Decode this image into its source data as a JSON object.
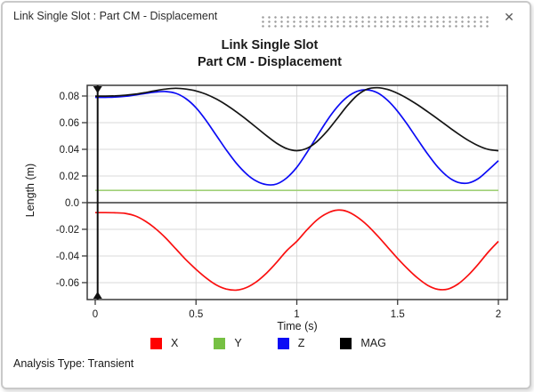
{
  "window": {
    "title": "Link Single Slot : Part CM - Displacement",
    "close_label": "✕"
  },
  "chart": {
    "title_line1": "Link Single Slot",
    "title_line2": "Part CM - Displacement",
    "xlabel": "Time (s)",
    "ylabel": "Length (m)",
    "footer": "Analysis Type: Transient"
  },
  "colors": {
    "grid": "#d9d9d9",
    "frame": "#3a3a3a",
    "zero_line": "#3a3a3a",
    "cursor": "#111111"
  },
  "chart_data": {
    "type": "line",
    "title": "Link Single Slot / Part CM - Displacement",
    "xlabel": "Time (s)",
    "ylabel": "Length (m)",
    "xlim": [
      -0.0397,
      2.0442
    ],
    "ylim": [
      -0.0727,
      0.088
    ],
    "grid": true,
    "legend_position": "bottom",
    "cursor_time": 0.012,
    "xticks": {
      "values": [
        0,
        0.5,
        1,
        1.5,
        2
      ],
      "labels": [
        "0",
        "0.5",
        "1",
        "1.5",
        "2"
      ]
    },
    "yticks": {
      "values": [
        0.08,
        0.06,
        0.04,
        0.02,
        0.0,
        -0.02,
        -0.04,
        -0.06
      ],
      "labels": [
        "0.08",
        "0.06",
        "0.04",
        "0.02",
        "0.0",
        "-0.02",
        "-0.04",
        "-0.06"
      ]
    },
    "x": [
      0,
      0.05,
      0.1,
      0.15,
      0.2,
      0.25,
      0.3,
      0.35,
      0.4,
      0.45,
      0.5,
      0.55,
      0.6,
      0.65,
      0.7,
      0.75,
      0.8,
      0.85,
      0.9,
      0.95,
      1,
      1.05,
      1.1,
      1.15,
      1.2,
      1.25,
      1.3,
      1.35,
      1.4,
      1.45,
      1.5,
      1.55,
      1.6,
      1.65,
      1.7,
      1.75,
      1.8,
      1.85,
      1.9,
      1.95,
      2
    ],
    "series": [
      {
        "name": "X",
        "color": "#ff0000",
        "line_color": "#fa0f0f",
        "values": [
          -0.0075,
          -0.0075,
          -0.0076,
          -0.0081,
          -0.01,
          -0.014,
          -0.0196,
          -0.0266,
          -0.0347,
          -0.0428,
          -0.05,
          -0.0565,
          -0.0617,
          -0.0648,
          -0.0656,
          -0.0637,
          -0.0593,
          -0.0528,
          -0.0448,
          -0.036,
          -0.029,
          -0.0205,
          -0.013,
          -0.008,
          -0.0056,
          -0.0066,
          -0.0108,
          -0.017,
          -0.0248,
          -0.0333,
          -0.0418,
          -0.0497,
          -0.0566,
          -0.0621,
          -0.065,
          -0.0648,
          -0.061,
          -0.0545,
          -0.0462,
          -0.037,
          -0.029
        ]
      },
      {
        "name": "Y",
        "color": "#76c043",
        "line_color": "#a0d077",
        "values": [
          0.0092,
          0.0092,
          0.0092,
          0.0092,
          0.0092,
          0.0092,
          0.0092,
          0.0092,
          0.0092,
          0.0092,
          0.0092,
          0.0092,
          0.0092,
          0.0092,
          0.0092,
          0.0092,
          0.0092,
          0.0092,
          0.0092,
          0.0092,
          0.0092,
          0.0092,
          0.0092,
          0.0092,
          0.0092,
          0.0092,
          0.0092,
          0.0092,
          0.0092,
          0.0092,
          0.0092,
          0.0092,
          0.0092,
          0.0092,
          0.0092,
          0.0092,
          0.0092,
          0.0092,
          0.0092,
          0.0092,
          0.0092
        ]
      },
      {
        "name": "Z",
        "color": "#0b0bf5",
        "line_color": "#0b0bf5",
        "values": [
          0.079,
          0.079,
          0.0792,
          0.0798,
          0.0808,
          0.082,
          0.083,
          0.0833,
          0.082,
          0.078,
          0.0712,
          0.0616,
          0.0506,
          0.0396,
          0.0296,
          0.0216,
          0.0161,
          0.0135,
          0.014,
          0.0186,
          0.0265,
          0.0376,
          0.0497,
          0.0616,
          0.0717,
          0.0792,
          0.0835,
          0.0846,
          0.0824,
          0.0768,
          0.0685,
          0.0583,
          0.0472,
          0.0363,
          0.0266,
          0.0193,
          0.0152,
          0.0147,
          0.018,
          0.0245,
          0.0315
        ]
      },
      {
        "name": "MAG",
        "color": "#000000",
        "line_color": "#141414",
        "values": [
          0.0799,
          0.0799,
          0.0801,
          0.0806,
          0.0814,
          0.0826,
          0.084,
          0.0852,
          0.0858,
          0.0852,
          0.0838,
          0.0813,
          0.0778,
          0.0733,
          0.0681,
          0.0624,
          0.0563,
          0.0502,
          0.0446,
          0.0405,
          0.039,
          0.0407,
          0.0458,
          0.0536,
          0.063,
          0.0726,
          0.0805,
          0.0852,
          0.0862,
          0.0849,
          0.082,
          0.078,
          0.0733,
          0.0681,
          0.0627,
          0.0571,
          0.0517,
          0.0468,
          0.0427,
          0.0399,
          0.039
        ]
      }
    ]
  }
}
